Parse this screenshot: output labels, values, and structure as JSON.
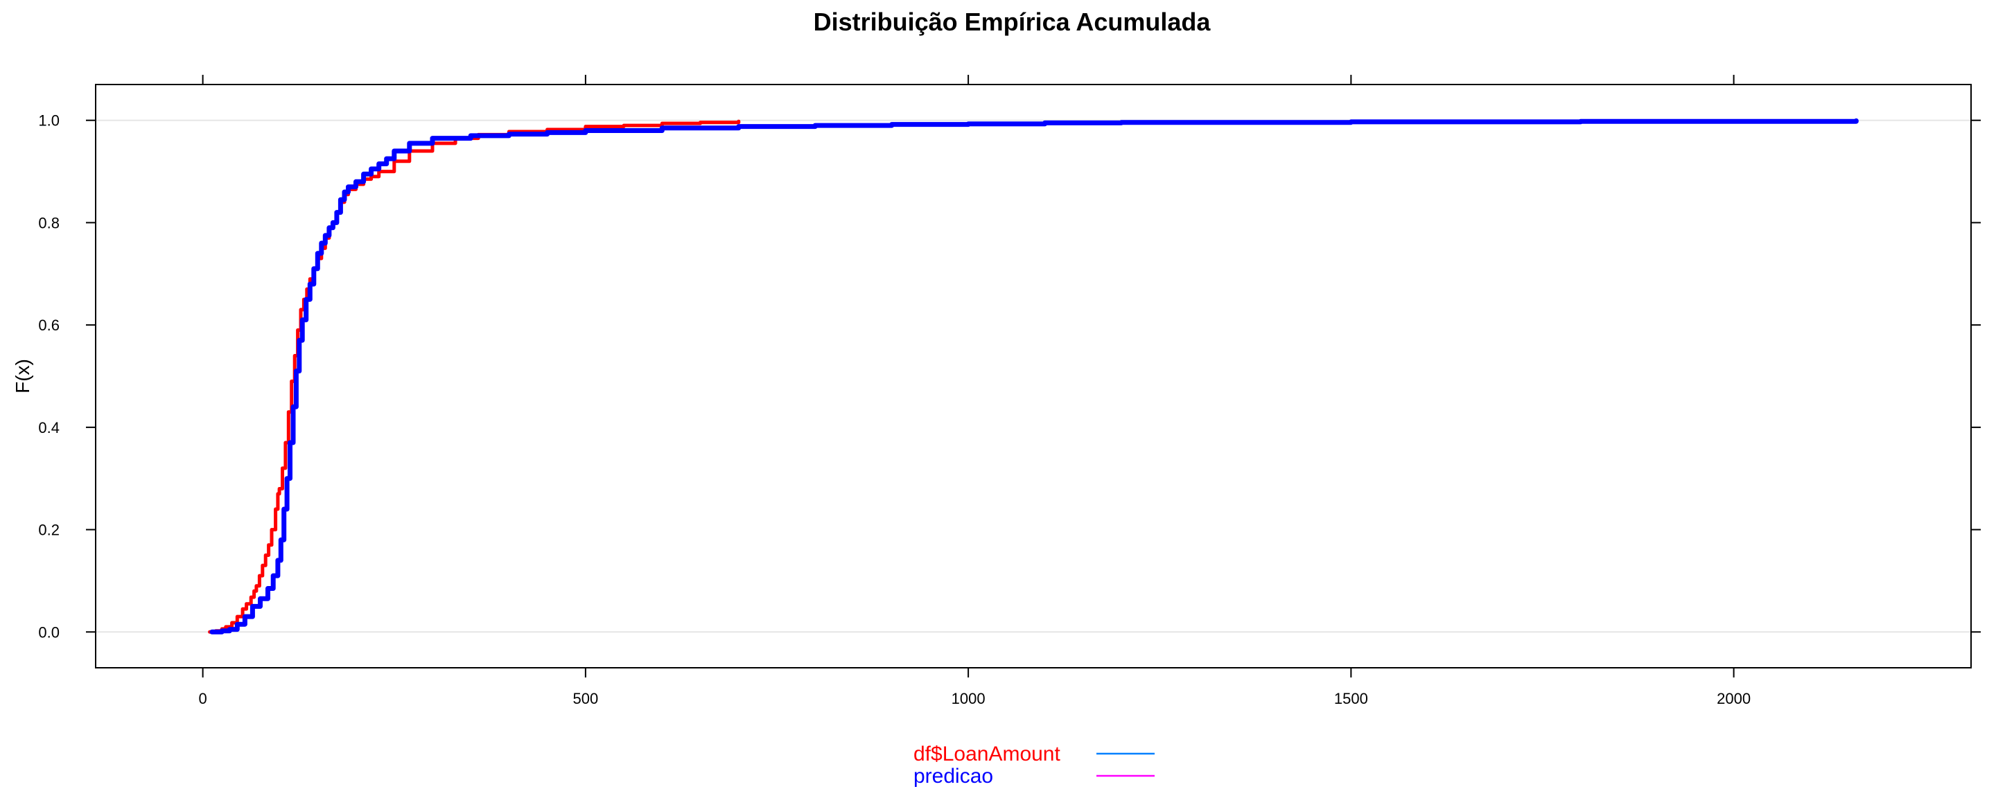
{
  "chart_data": {
    "type": "line",
    "title": "Distribuição Empírica Acumulada",
    "xlabel": "",
    "ylabel": "F(x)",
    "xlim": [
      -140,
      2310
    ],
    "ylim": [
      -0.07,
      1.07
    ],
    "x_ticks": [
      0,
      500,
      1000,
      1500,
      2000
    ],
    "x_tick_labels": [
      "0",
      "500",
      "1000",
      "1500",
      "2000"
    ],
    "y_ticks": [
      0.0,
      0.2,
      0.4,
      0.6,
      0.8,
      1.0
    ],
    "y_tick_labels": [
      "0.0",
      "0.2",
      "0.4",
      "0.6",
      "0.8",
      "1.0"
    ],
    "h_grid": [
      0,
      1
    ],
    "legend_position": "bottom-center",
    "legend": [
      {
        "label": "df$LoanAmount",
        "text_color": "#ff0000",
        "line_color": "#0080ff"
      },
      {
        "label": "predicao",
        "text_color": "#0000ff",
        "line_color": "#ff00ff"
      }
    ],
    "series": [
      {
        "name": "df$LoanAmount",
        "color": "#ff0000",
        "x": [
          9,
          17,
          25,
          30,
          38,
          45,
          52,
          57,
          63,
          67,
          70,
          74,
          78,
          82,
          86,
          90,
          95,
          98,
          100,
          104,
          108,
          112,
          116,
          120,
          124,
          128,
          132,
          136,
          140,
          145,
          150,
          155,
          160,
          165,
          170,
          175,
          180,
          185,
          190,
          200,
          210,
          220,
          230,
          250,
          270,
          300,
          330,
          360,
          400,
          450,
          500,
          550,
          600,
          650,
          700
        ],
        "y": [
          0.0,
          0.002,
          0.006,
          0.01,
          0.018,
          0.03,
          0.045,
          0.055,
          0.068,
          0.08,
          0.09,
          0.11,
          0.13,
          0.15,
          0.17,
          0.2,
          0.24,
          0.27,
          0.28,
          0.32,
          0.37,
          0.43,
          0.49,
          0.54,
          0.59,
          0.63,
          0.65,
          0.67,
          0.69,
          0.71,
          0.73,
          0.75,
          0.77,
          0.79,
          0.8,
          0.82,
          0.84,
          0.855,
          0.865,
          0.875,
          0.885,
          0.89,
          0.9,
          0.92,
          0.94,
          0.955,
          0.965,
          0.972,
          0.978,
          0.982,
          0.988,
          0.99,
          0.994,
          0.996,
          0.998
        ]
      },
      {
        "name": "predicao",
        "color": "#0000ff",
        "x": [
          12,
          25,
          35,
          45,
          55,
          65,
          75,
          85,
          92,
          98,
          102,
          106,
          110,
          114,
          118,
          122,
          126,
          130,
          135,
          140,
          145,
          150,
          155,
          160,
          165,
          170,
          175,
          180,
          185,
          190,
          200,
          210,
          220,
          230,
          240,
          250,
          270,
          300,
          350,
          400,
          450,
          500,
          600,
          700,
          800,
          900,
          1000,
          1100,
          1200,
          1500,
          1800,
          2160
        ],
        "y": [
          0.0,
          0.002,
          0.005,
          0.015,
          0.03,
          0.05,
          0.065,
          0.085,
          0.11,
          0.14,
          0.18,
          0.24,
          0.3,
          0.37,
          0.44,
          0.51,
          0.57,
          0.61,
          0.65,
          0.68,
          0.71,
          0.74,
          0.76,
          0.775,
          0.79,
          0.8,
          0.82,
          0.845,
          0.86,
          0.87,
          0.88,
          0.895,
          0.905,
          0.915,
          0.925,
          0.94,
          0.955,
          0.965,
          0.97,
          0.973,
          0.976,
          0.98,
          0.985,
          0.988,
          0.99,
          0.992,
          0.993,
          0.995,
          0.996,
          0.997,
          0.998,
          0.999
        ]
      }
    ]
  }
}
